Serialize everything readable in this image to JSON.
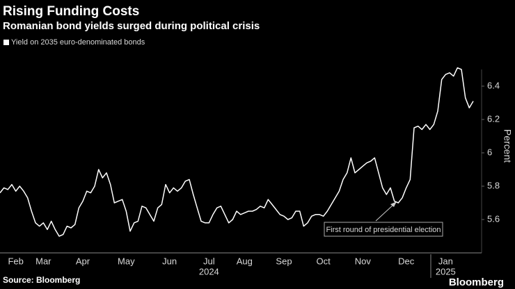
{
  "chart_data": {
    "type": "line",
    "title": "Rising Funding Costs",
    "subtitle": "Romanian bond yields surged during political crisis",
    "y_axis_label": "Percent",
    "source": "Source: Bloomberg",
    "brand": "Bloomberg",
    "annotation": "First round of presidential election",
    "year_labels": [
      "2024",
      "2025"
    ],
    "categories": [
      null,
      null,
      null,
      null,
      "Feb",
      null,
      null,
      null,
      null,
      null,
      null,
      "Mar",
      null,
      null,
      null,
      null,
      null,
      null,
      null,
      null,
      null,
      "Apr",
      null,
      null,
      null,
      null,
      null,
      null,
      null,
      null,
      null,
      null,
      "May",
      null,
      null,
      null,
      null,
      null,
      null,
      null,
      null,
      null,
      null,
      "Jun",
      null,
      null,
      null,
      null,
      null,
      null,
      null,
      null,
      null,
      "Jul",
      null,
      null,
      null,
      null,
      null,
      null,
      null,
      null,
      "Aug",
      null,
      null,
      null,
      null,
      null,
      null,
      null,
      null,
      null,
      "Sep",
      null,
      null,
      null,
      null,
      null,
      null,
      null,
      null,
      null,
      "Oct",
      null,
      null,
      null,
      null,
      null,
      null,
      null,
      null,
      null,
      "Nov",
      null,
      null,
      null,
      null,
      null,
      null,
      null,
      null,
      null,
      null,
      "Dec",
      null,
      null,
      null,
      null,
      null,
      null,
      null,
      null,
      null,
      "Jan",
      null,
      null,
      null,
      null,
      null,
      null,
      null
    ],
    "series": [
      {
        "name": "Yield on 2035 euro-denominated bonds",
        "color": "#ffffff",
        "values": [
          5.76,
          5.79,
          5.78,
          5.81,
          5.77,
          5.8,
          5.77,
          5.73,
          5.65,
          5.58,
          5.56,
          5.58,
          5.54,
          5.59,
          5.54,
          5.5,
          5.51,
          5.56,
          5.55,
          5.57,
          5.67,
          5.71,
          5.77,
          5.76,
          5.8,
          5.9,
          5.85,
          5.88,
          5.81,
          5.7,
          5.71,
          5.72,
          5.65,
          5.53,
          5.58,
          5.59,
          5.68,
          5.67,
          5.63,
          5.59,
          5.67,
          5.69,
          5.81,
          5.76,
          5.79,
          5.77,
          5.79,
          5.83,
          5.84,
          5.75,
          5.67,
          5.59,
          5.58,
          5.58,
          5.63,
          5.67,
          5.68,
          5.63,
          5.58,
          5.6,
          5.65,
          5.63,
          5.64,
          5.65,
          5.65,
          5.66,
          5.68,
          5.67,
          5.72,
          5.69,
          5.66,
          5.63,
          5.62,
          5.6,
          5.61,
          5.65,
          5.65,
          5.56,
          5.58,
          5.62,
          5.63,
          5.63,
          5.62,
          5.65,
          5.69,
          5.73,
          5.77,
          5.84,
          5.88,
          5.97,
          5.88,
          5.9,
          5.92,
          5.94,
          5.95,
          5.97,
          5.88,
          5.79,
          5.75,
          5.79,
          5.71,
          5.7,
          5.73,
          5.79,
          5.84,
          6.15,
          6.16,
          6.14,
          6.17,
          6.14,
          6.17,
          6.25,
          6.44,
          6.47,
          6.48,
          6.46,
          6.51,
          6.5,
          6.33,
          6.27,
          6.31
        ]
      }
    ],
    "ylim": [
      5.4,
      6.5
    ],
    "yticks": [
      5.6,
      5.8,
      6.0,
      6.2,
      6.4
    ],
    "legend": "top-left"
  }
}
